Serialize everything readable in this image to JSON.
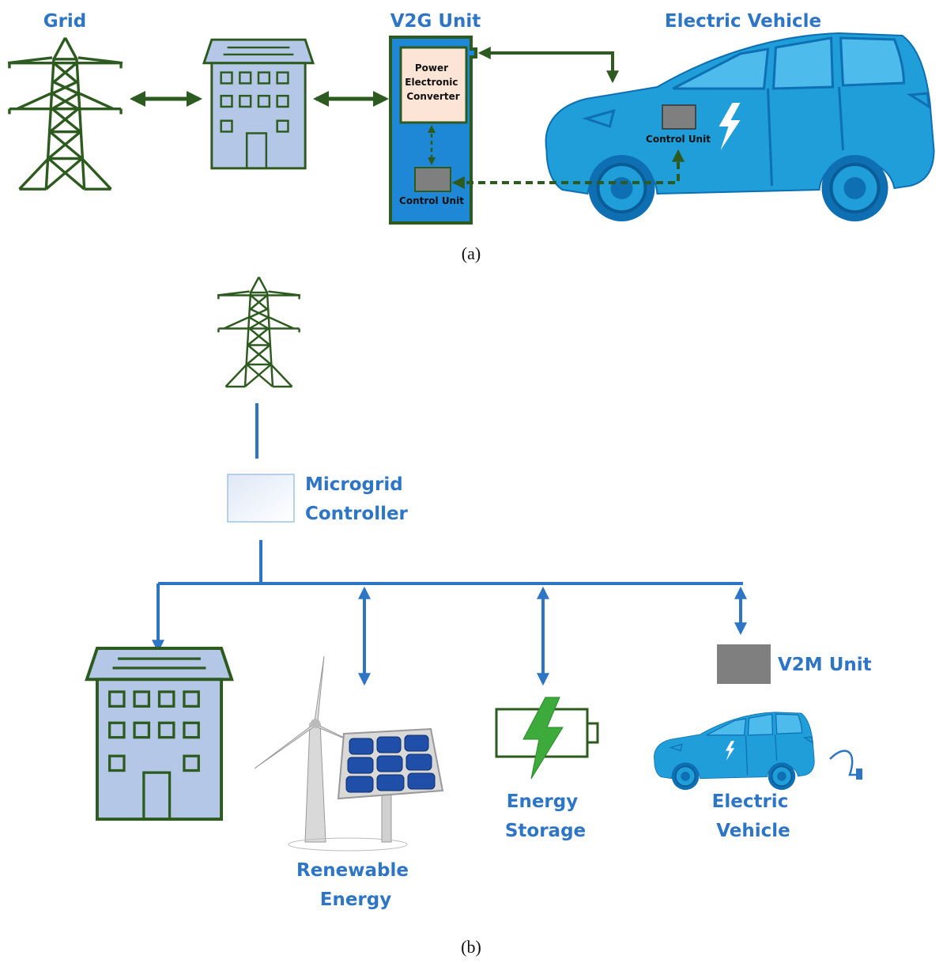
{
  "panel_a": {
    "grid_label": "Grid",
    "v2g_unit": {
      "label": "V2G Unit",
      "converter_label": [
        "Power",
        "Electronic",
        "Converter"
      ],
      "control_unit_label": "Control Unit"
    },
    "electric_vehicle": {
      "label": "Electric Vehicle",
      "control_unit_label": "Control Unit"
    },
    "caption": "(a)"
  },
  "panel_b": {
    "microgrid_controller": [
      "Microgrid",
      "Controller"
    ],
    "v2m_unit": "V2M Unit",
    "renewable_energy": [
      "Renewable",
      "Energy"
    ],
    "energy_storage": [
      "Energy",
      "Storage"
    ],
    "electric_vehicle": [
      "Electric",
      "Vehicle"
    ],
    "caption": "(b)"
  }
}
